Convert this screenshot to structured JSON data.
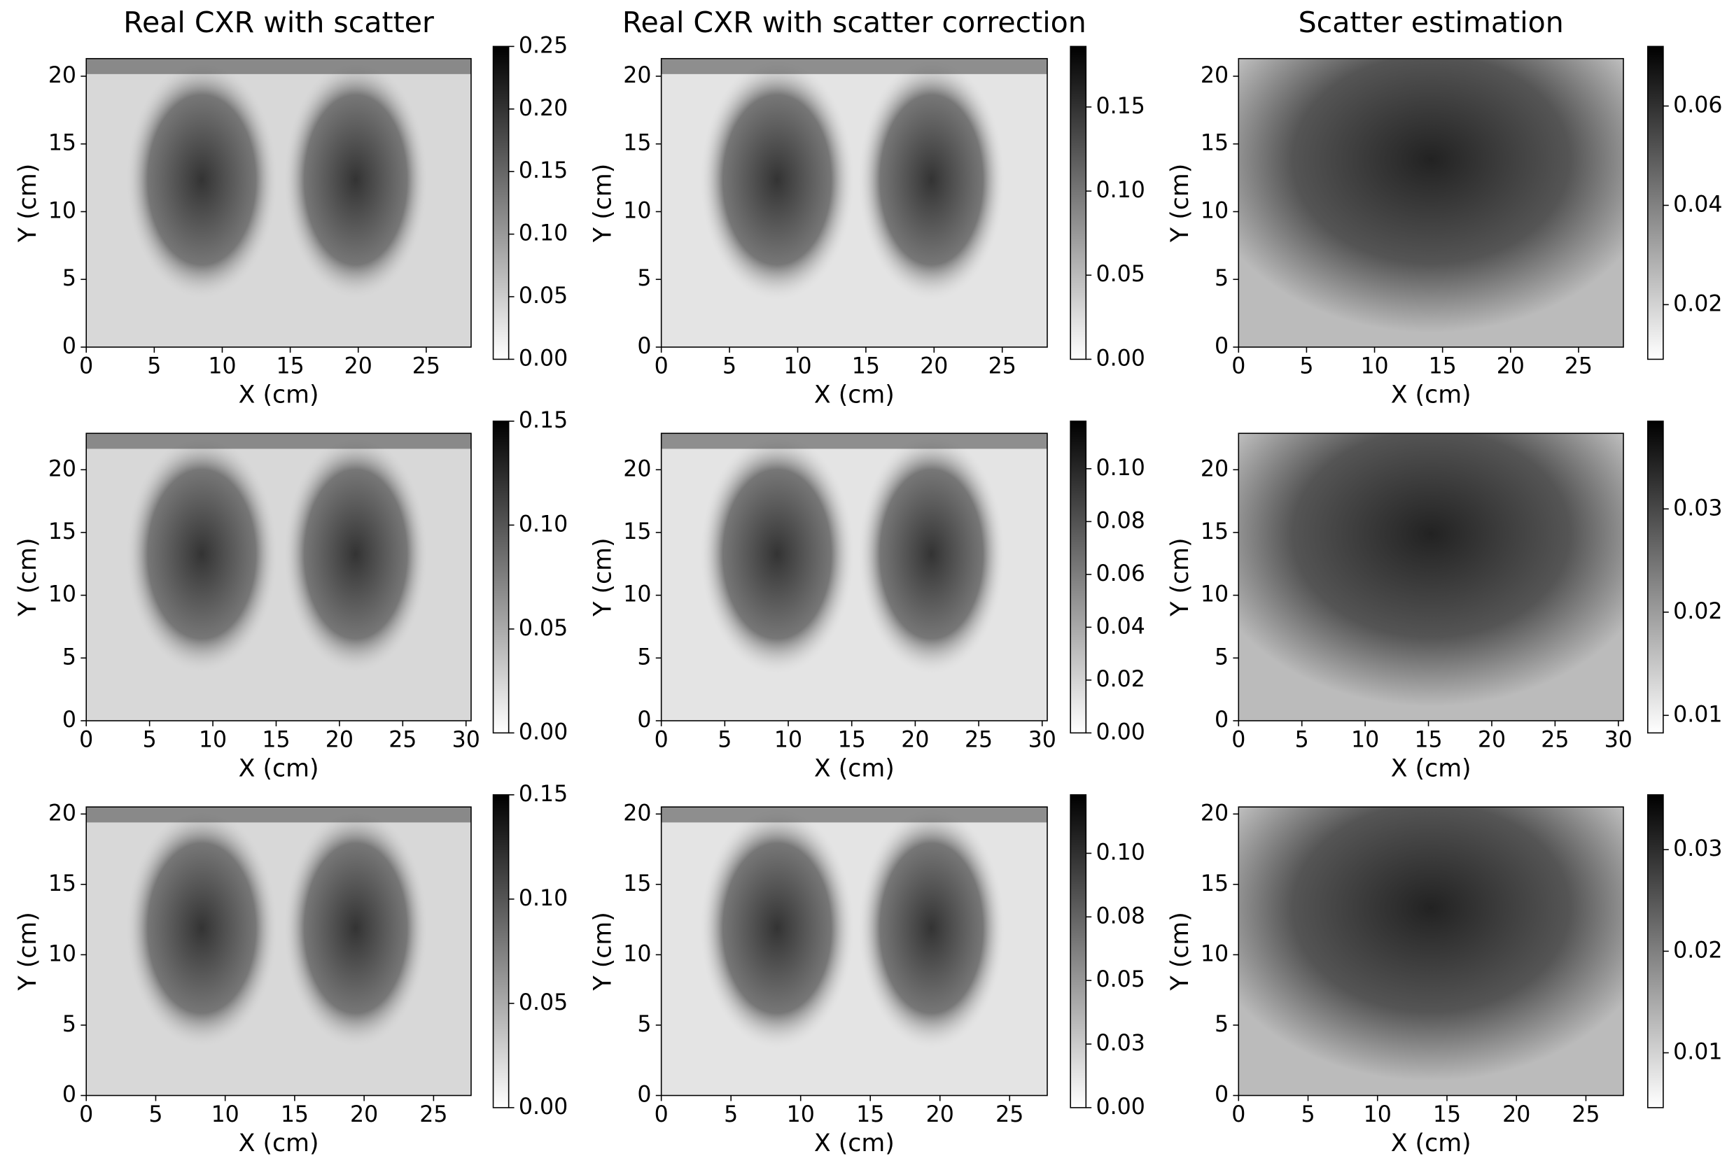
{
  "chart_data": [
    {
      "type": "heatmap",
      "title": "Real CXR with scatter",
      "xlabel": "X (cm)",
      "ylabel": "Y (cm)",
      "xlim": [
        0,
        28.3
      ],
      "ylim": [
        0,
        21.3
      ],
      "xticks": [
        0,
        5,
        10,
        15,
        20,
        25
      ],
      "yticks": [
        0,
        5,
        10,
        15,
        20
      ],
      "cmap": "gray_r",
      "colorbar": {
        "lim": [
          0,
          0.25
        ],
        "ticks": [
          {
            "value": 0,
            "label": "0.00"
          },
          {
            "value": 0.05,
            "label": "0.05"
          },
          {
            "value": 0.1,
            "label": "0.10"
          },
          {
            "value": 0.15,
            "label": "0.15"
          },
          {
            "value": 0.2,
            "label": "0.20"
          },
          {
            "value": 0.25,
            "label": "0.25"
          }
        ]
      }
    },
    {
      "type": "heatmap",
      "title": "Real CXR with scatter correction",
      "xlabel": "X (cm)",
      "ylabel": "Y (cm)",
      "xlim": [
        0,
        28.3
      ],
      "ylim": [
        0,
        21.3
      ],
      "xticks": [
        0,
        5,
        10,
        15,
        20,
        25
      ],
      "yticks": [
        0,
        5,
        10,
        15,
        20
      ],
      "cmap": "gray_r",
      "colorbar": {
        "lim": [
          0,
          0.186
        ],
        "ticks": [
          {
            "value": 0,
            "label": "0.00"
          },
          {
            "value": 0.05,
            "label": "0.05"
          },
          {
            "value": 0.1,
            "label": "0.10"
          },
          {
            "value": 0.15,
            "label": "0.15"
          }
        ]
      }
    },
    {
      "type": "heatmap",
      "title": "Scatter estimation",
      "xlabel": "X (cm)",
      "ylabel": "Y (cm)",
      "xlim": [
        0,
        28.3
      ],
      "ylim": [
        0,
        21.3
      ],
      "xticks": [
        0,
        5,
        10,
        15,
        20,
        25
      ],
      "yticks": [
        0,
        5,
        10,
        15,
        20
      ],
      "cmap": "gray_r",
      "colorbar": {
        "lim": [
          0.009,
          0.072
        ],
        "ticks": [
          0.02,
          0.04,
          0.06
        ]
      }
    },
    {
      "type": "heatmap",
      "xlabel": "X (cm)",
      "ylabel": "Y (cm)",
      "xlim": [
        0,
        30.4
      ],
      "ylim": [
        0,
        22.9
      ],
      "xticks": [
        0,
        5,
        10,
        15,
        20,
        25,
        30
      ],
      "yticks": [
        0,
        5,
        10,
        15,
        20
      ],
      "cmap": "gray_r",
      "colorbar": {
        "lim": [
          0,
          0.15
        ],
        "ticks": [
          {
            "value": 0,
            "label": "0.00"
          },
          {
            "value": 0.05,
            "label": "0.05"
          },
          {
            "value": 0.1,
            "label": "0.10"
          },
          {
            "value": 0.15,
            "label": "0.15"
          }
        ]
      }
    },
    {
      "type": "heatmap",
      "xlabel": "X (cm)",
      "ylabel": "Y (cm)",
      "xlim": [
        0,
        30.4
      ],
      "ylim": [
        0,
        22.9
      ],
      "xticks": [
        0,
        5,
        10,
        15,
        20,
        25,
        30
      ],
      "yticks": [
        0,
        5,
        10,
        15,
        20
      ],
      "cmap": "gray_r",
      "colorbar": {
        "lim": [
          0,
          0.118
        ],
        "ticks": [
          {
            "value": 0,
            "label": "0.00"
          },
          0.02,
          0.04,
          0.06,
          0.08,
          {
            "value": 0.1,
            "label": "0.10"
          }
        ]
      }
    },
    {
      "type": "heatmap",
      "xlabel": "X (cm)",
      "ylabel": "Y (cm)",
      "xlim": [
        0,
        30.4
      ],
      "ylim": [
        0,
        22.9
      ],
      "xticks": [
        0,
        5,
        10,
        15,
        20,
        25,
        30
      ],
      "yticks": [
        0,
        5,
        10,
        15,
        20
      ],
      "cmap": "gray_r",
      "colorbar": {
        "lim": [
          0.0083,
          0.0385
        ],
        "ticks": [
          0.01,
          0.02,
          0.03
        ]
      }
    },
    {
      "type": "heatmap",
      "xlabel": "X (cm)",
      "ylabel": "Y (cm)",
      "xlim": [
        0,
        27.7
      ],
      "ylim": [
        0,
        20.5
      ],
      "xticks": [
        0,
        5,
        10,
        15,
        20,
        25
      ],
      "yticks": [
        0,
        5,
        10,
        15,
        20
      ],
      "cmap": "gray_r",
      "colorbar": {
        "lim": [
          0,
          0.15
        ],
        "ticks": [
          {
            "value": 0,
            "label": "0.00"
          },
          {
            "value": 0.05,
            "label": "0.05"
          },
          {
            "value": 0.1,
            "label": "0.10"
          },
          {
            "value": 0.15,
            "label": "0.15"
          }
        ]
      }
    },
    {
      "type": "heatmap",
      "xlabel": "X (cm)",
      "ylabel": "Y (cm)",
      "xlim": [
        0,
        27.7
      ],
      "ylim": [
        0,
        20.5
      ],
      "xticks": [
        0,
        5,
        10,
        15,
        20,
        25
      ],
      "yticks": [
        0,
        5,
        10,
        15,
        20
      ],
      "cmap": "gray_r",
      "colorbar": {
        "lim": [
          0,
          0.123
        ],
        "ticks": [
          {
            "value": 0,
            "label": "0.00"
          },
          {
            "value": 0.025,
            "label": "0.03"
          },
          {
            "value": 0.05,
            "label": "0.05"
          },
          {
            "value": 0.075,
            "label": "0.08"
          },
          {
            "value": 0.1,
            "label": "0.10"
          }
        ]
      }
    },
    {
      "type": "heatmap",
      "xlabel": "X (cm)",
      "ylabel": "Y (cm)",
      "xlim": [
        0,
        27.7
      ],
      "ylim": [
        0,
        20.5
      ],
      "xticks": [
        0,
        5,
        10,
        15,
        20,
        25
      ],
      "yticks": [
        0,
        5,
        10,
        15,
        20
      ],
      "cmap": "gray_r",
      "colorbar": {
        "lim": [
          0.0046,
          0.0354
        ],
        "ticks": [
          0.01,
          0.02,
          0.03
        ]
      }
    }
  ]
}
